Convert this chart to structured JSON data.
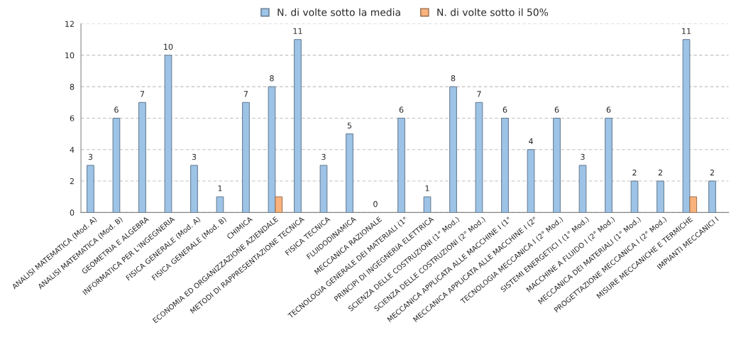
{
  "chart_data": {
    "type": "bar",
    "categories": [
      "ANALISI MATEMATICA (Mod. A)",
      "ANALISI MATEMATICA (Mod. B)",
      "GEOMETRIA E ALGEBRA",
      "INFORMATICA PER L'INGEGNERIA",
      "FISICA GENERALE (Mod. A)",
      "FISICA GENERALE (Mod. B)",
      "CHIMICA",
      "ECONOMIA ED ORGANIZZAZIONE AZIENDALE",
      "METODI DI RAPPRESENTAZIONE TECNICA",
      "FISICA TECNICA",
      "FLUIDODINAMICA",
      "MECCANICA RAZIONALE",
      "TECNOLOGIA GENERALE DEI MATERIALI (1°",
      "PRINCIPI DI INGEGNERIA ELETTRICA",
      "SCIENZA DELLE COSTRUZIONI (1° Mod.)",
      "SCIENZA DELLE COSTRUZIONI (2° Mod.)",
      "MECCANICA APPLICATA ALLE MACCHINE I (1°",
      "MECCANICA APPLICATA ALLE MACCHINE I (2°",
      "TECNOLOGIA MECCANICA I (2° Mod.)",
      "SISTEMI ENERGETICI I (1° Mod.)",
      "MACCHINE A FLUIDO I (2° Mod.)",
      "MECCANICA DEI MATERIALI (1° Mod.)",
      "PROGETTAZIONE MECCANICA I (2° Mod.)",
      "MISURE MECCANICHE E TERMICHE",
      "IMPIANTI MECCANICI I"
    ],
    "series": [
      {
        "name": "N. di volte sotto la media",
        "color": "#9dc3e6",
        "values": [
          3,
          6,
          7,
          10,
          3,
          1,
          7,
          8,
          11,
          3,
          5,
          0,
          6,
          1,
          8,
          7,
          6,
          4,
          6,
          3,
          6,
          2,
          2,
          11,
          2
        ],
        "value_labels": [
          "3",
          "6",
          "7",
          "10",
          "3",
          "1",
          "7",
          "8",
          "11",
          "3",
          "5",
          "0",
          "6",
          "1",
          "8",
          "7",
          "6",
          "4",
          "6",
          "3",
          "6",
          "2",
          "2",
          "11",
          "2"
        ]
      },
      {
        "name": "N. di volte sotto il 50%",
        "color": "#f9b27c",
        "values": [
          0,
          0,
          0,
          0,
          0,
          0,
          0,
          1,
          0,
          0,
          0,
          0,
          0,
          0,
          0,
          0,
          0,
          0,
          0,
          0,
          0,
          0,
          0,
          1,
          0
        ]
      }
    ],
    "ylim": [
      0,
      12
    ],
    "yticks": [
      0,
      2,
      4,
      6,
      8,
      10,
      12
    ],
    "grid": "y",
    "legend": "top"
  }
}
